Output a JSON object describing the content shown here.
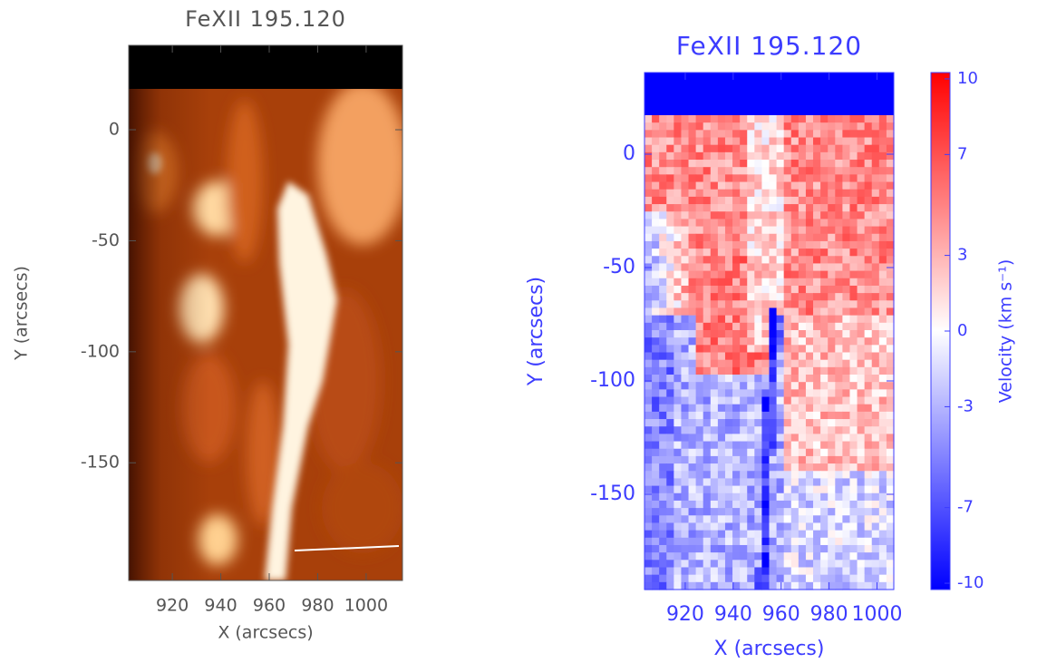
{
  "chart_data": [
    {
      "type": "image",
      "title": "FeXII 195.120",
      "xlabel": "X (arcsecs)",
      "ylabel": "Y (arcsecs)",
      "xlim": [
        902,
        1015
      ],
      "ylim": [
        -203,
        38
      ],
      "xticks": [
        920,
        940,
        960,
        980,
        1000
      ],
      "yticks": [
        0,
        -50,
        -100,
        -150
      ],
      "color": "#555555"
    },
    {
      "type": "image",
      "title": "FeXII 195.120",
      "xlabel": "X (arcsecs)",
      "ylabel": "Y (arcsecs)",
      "xlim": [
        903,
        1007
      ],
      "ylim": [
        -192,
        36
      ],
      "xticks": [
        920,
        940,
        960,
        980,
        1000
      ],
      "yticks": [
        0,
        -50,
        -100,
        -150
      ],
      "color": "#3c3cff",
      "colorbar": {
        "label": "Velocity (km s⁻¹)",
        "lim": [
          -10.25,
          10.25
        ],
        "ticks": [
          10,
          7,
          3,
          0,
          -3,
          -7,
          -10
        ]
      }
    }
  ]
}
